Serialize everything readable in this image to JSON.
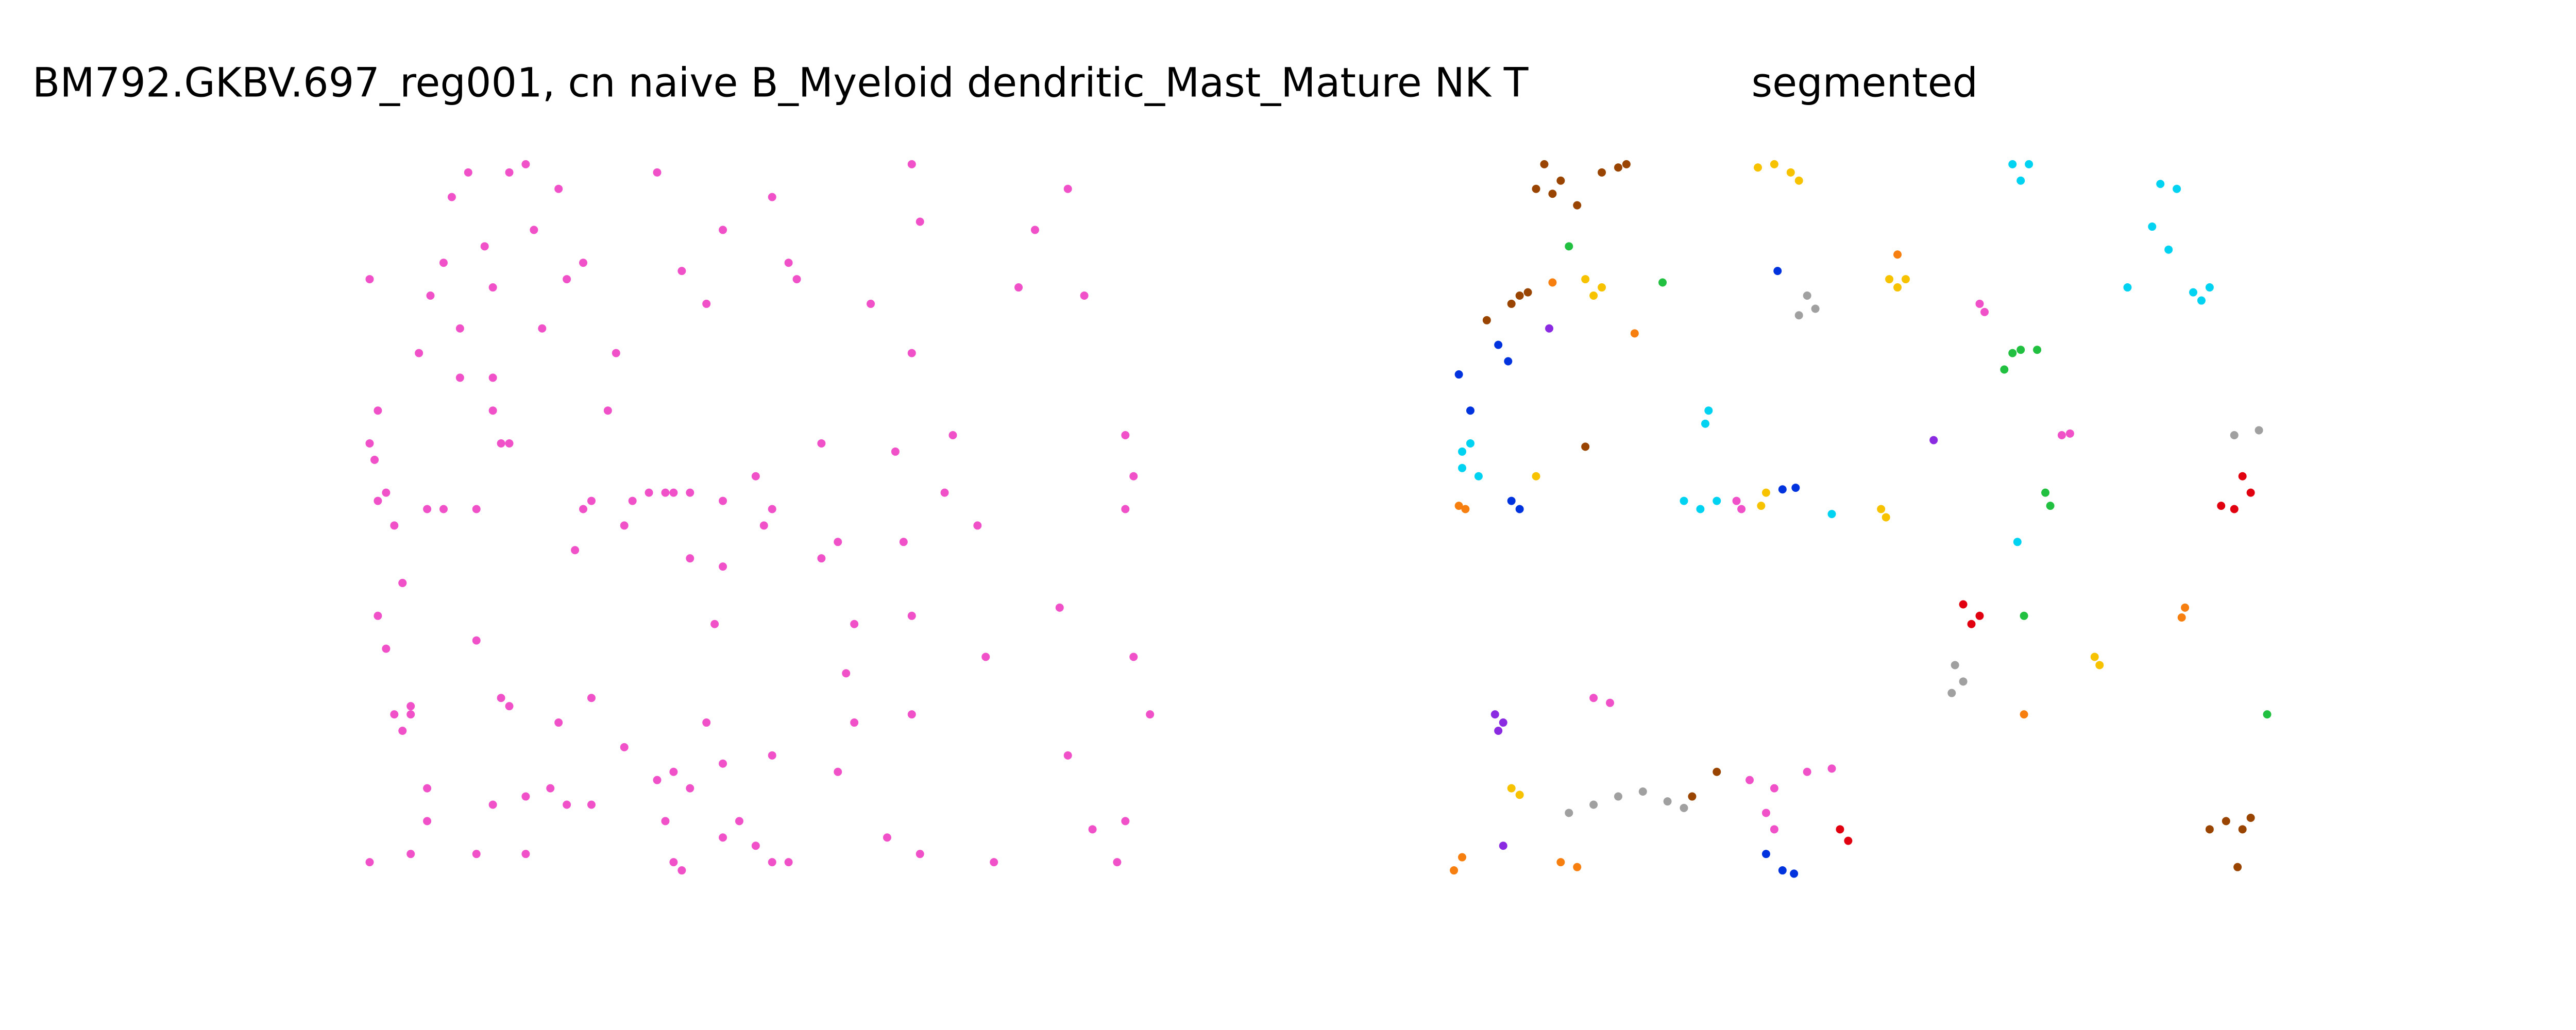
{
  "chart_data": [
    {
      "type": "scatter",
      "title": "BM792.GKBV.697_reg001, cn naive B_Myeloid dendritic_Mast_Mature NK T",
      "xlim": [
        220,
        725
      ],
      "ylim": [
        535,
        95
      ],
      "color": "#f050c8",
      "x": [
        225,
        230,
        228,
        235,
        240,
        245,
        250,
        255,
        262,
        270,
        275,
        280,
        285,
        295,
        300,
        305,
        310,
        320,
        325,
        330,
        340,
        345,
        355,
        360,
        370,
        375,
        385,
        395,
        405,
        410,
        420,
        400,
        415,
        430,
        440,
        470,
        480,
        485,
        500,
        530,
        545,
        555,
        555,
        560,
        575,
        580,
        595,
        620,
        630,
        650,
        660,
        685,
        690,
        685,
        700,
        690,
        645,
        600,
        555,
        520,
        515,
        500,
        510,
        550,
        555,
        520,
        510,
        470,
        440,
        430,
        420,
        410,
        400,
        405,
        410,
        415,
        440,
        460,
        470,
        450,
        480,
        540,
        560,
        605,
        650,
        665,
        685,
        680,
        240,
        250,
        245,
        260,
        260,
        225,
        250,
        290,
        300,
        320,
        335,
        345,
        360,
        320,
        305,
        310,
        340,
        360,
        380,
        290,
        235,
        230,
        245,
        225,
        230,
        300,
        310,
        355,
        380,
        440,
        460,
        470,
        465,
        420,
        440,
        435,
        350,
        280,
        300,
        290,
        260,
        270
      ],
      "y": [
        170,
        305,
        280,
        300,
        320,
        355,
        435,
        215,
        180,
        160,
        120,
        200,
        105,
        150,
        175,
        270,
        105,
        100,
        140,
        200,
        115,
        170,
        160,
        305,
        250,
        215,
        305,
        300,
        300,
        300,
        300,
        105,
        165,
        185,
        140,
        120,
        160,
        170,
        270,
        185,
        275,
        100,
        215,
        135,
        300,
        265,
        320,
        175,
        140,
        115,
        180,
        265,
        290,
        310,
        435,
        400,
        370,
        400,
        375,
        380,
        410,
        340,
        330,
        330,
        435,
        440,
        470,
        460,
        465,
        440,
        480,
        470,
        475,
        500,
        525,
        530,
        510,
        515,
        525,
        500,
        525,
        510,
        520,
        525,
        460,
        505,
        500,
        525,
        435,
        430,
        445,
        480,
        500,
        525,
        520,
        520,
        490,
        485,
        480,
        490,
        490,
        520,
        425,
        430,
        440,
        425,
        455,
        390,
        395,
        375,
        355,
        270,
        250,
        250,
        270,
        310,
        320,
        305,
        290,
        310,
        320,
        340,
        345,
        380,
        335,
        230,
        230,
        310,
        310,
        310
      ]
    },
    {
      "type": "scatter",
      "title": "segmented",
      "xlim": [
        885,
        1390
      ],
      "ylim": [
        535,
        95
      ],
      "series": [
        {
          "color": "#994400",
          "x": [
            940,
            950,
            960,
            975,
            985,
            990,
            935,
            945,
            920,
            925,
            930,
            965,
            1030,
            1045,
            1345,
            1355,
            1365,
            1362,
            1370,
            905
          ],
          "y": [
            100,
            110,
            125,
            105,
            102,
            100,
            115,
            118,
            185,
            180,
            178,
            272,
            485,
            470,
            505,
            500,
            505,
            528,
            498,
            195
          ]
        },
        {
          "color": "#f7c200",
          "x": [
            1070,
            1080,
            1090,
            1095,
            965,
            970,
            975,
            935,
            1075,
            1072,
            1145,
            1148,
            1150,
            1160,
            1155,
            1275,
            1278,
            920,
            925
          ],
          "y": [
            102,
            100,
            105,
            110,
            170,
            180,
            175,
            290,
            300,
            308,
            310,
            315,
            170,
            170,
            175,
            400,
            405,
            480,
            484
          ]
        },
        {
          "color": "#00d2f2",
          "x": [
            1225,
            1235,
            1230,
            1315,
            1325,
            1310,
            1320,
            1295,
            1335,
            1345,
            1340,
            1040,
            1038,
            890,
            895,
            890,
            900,
            1025,
            1035,
            1045,
            1115,
            1228
          ],
          "y": [
            100,
            100,
            110,
            112,
            115,
            138,
            152,
            175,
            178,
            175,
            183,
            250,
            258,
            275,
            270,
            285,
            290,
            305,
            310,
            305,
            313,
            330
          ]
        },
        {
          "color": "#f77f10",
          "x": [
            945,
            995,
            1155,
            888,
            892,
            1330,
            1328,
            1232,
            890,
            885,
            950,
            960
          ],
          "y": [
            172,
            203,
            155,
            308,
            310,
            370,
            376,
            435,
            522,
            530,
            525,
            528
          ]
        },
        {
          "color": "#22c040",
          "x": [
            955,
            1012,
            1225,
            1230,
            1240,
            1220,
            1245,
            1248,
            1232,
            1380
          ],
          "y": [
            150,
            172,
            215,
            213,
            213,
            225,
            300,
            308,
            375,
            435
          ]
        },
        {
          "color": "#0033dd",
          "x": [
            1082,
            888,
            895,
            912,
            918,
            920,
            925,
            1085,
            1093,
            1075,
            1085,
            1092
          ],
          "y": [
            165,
            228,
            250,
            210,
            220,
            305,
            310,
            298,
            297,
            520,
            530,
            532
          ]
        },
        {
          "color": "#8a2be2",
          "x": [
            943,
            1177,
            910,
            915,
            912,
            915
          ],
          "y": [
            200,
            268,
            435,
            440,
            445,
            515
          ]
        },
        {
          "color": "#a0a0a0",
          "x": [
            1100,
            1105,
            1095,
            1360,
            1375,
            1190,
            1195,
            1188,
            955,
            970,
            985,
            1000,
            1015,
            1025
          ],
          "y": [
            180,
            188,
            192,
            265,
            262,
            405,
            415,
            422,
            495,
            490,
            485,
            482,
            488,
            492
          ]
        },
        {
          "color": "#e00010",
          "x": [
            1365,
            1370,
            1360,
            1352,
            1200,
            1205,
            1195,
            1120,
            1125
          ],
          "y": [
            290,
            300,
            310,
            308,
            380,
            375,
            368,
            505,
            512
          ]
        },
        {
          "color": "#f050c8",
          "x": [
            1057,
            1060,
            1205,
            1208,
            1255,
            1260,
            970,
            980,
            1065,
            1080,
            1100,
            1115,
            1075,
            1080
          ],
          "y": [
            305,
            310,
            185,
            190,
            265,
            264,
            425,
            428,
            475,
            480,
            470,
            468,
            495,
            505
          ]
        }
      ]
    }
  ]
}
